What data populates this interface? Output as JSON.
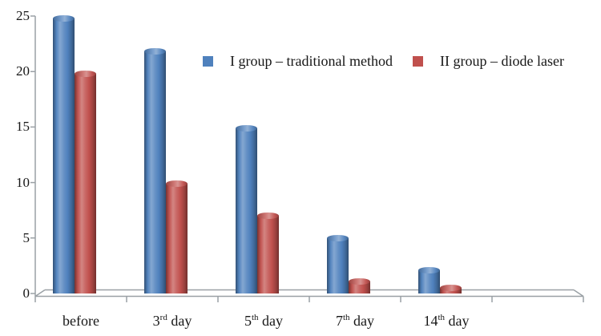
{
  "chart_data": {
    "type": "bar",
    "title": "",
    "xlabel": "",
    "ylabel": "",
    "categories": [
      "before",
      "3rd day",
      "5th day",
      "7th day",
      "14th day"
    ],
    "categories_rich": [
      {
        "pre": "before",
        "sup": "",
        "post": ""
      },
      {
        "pre": "3",
        "sup": "rd",
        "post": " day"
      },
      {
        "pre": "5",
        "sup": "th",
        "post": " day"
      },
      {
        "pre": "7",
        "sup": "th",
        "post": " day"
      },
      {
        "pre": "14",
        "sup": "th",
        "post": " day"
      }
    ],
    "series": [
      {
        "name": "I group – traditional method",
        "color": "#4F81BD",
        "values": [
          24.8,
          21.8,
          14.9,
          5.0,
          2.1
        ]
      },
      {
        "name": "II group – diode laser",
        "color": "#C0504D",
        "values": [
          19.8,
          9.9,
          7.0,
          1.1,
          0.5
        ]
      }
    ],
    "ylim": [
      0,
      25
    ],
    "y_ticks": [
      0,
      5,
      10,
      15,
      20,
      25
    ],
    "x_slots_total": 6,
    "grid": false,
    "legend_position": "top-center",
    "bar_style": "cylinder-3d",
    "axis_color": "#9aa0a5",
    "text_color": "#161616",
    "background_color": "#ffffff"
  }
}
